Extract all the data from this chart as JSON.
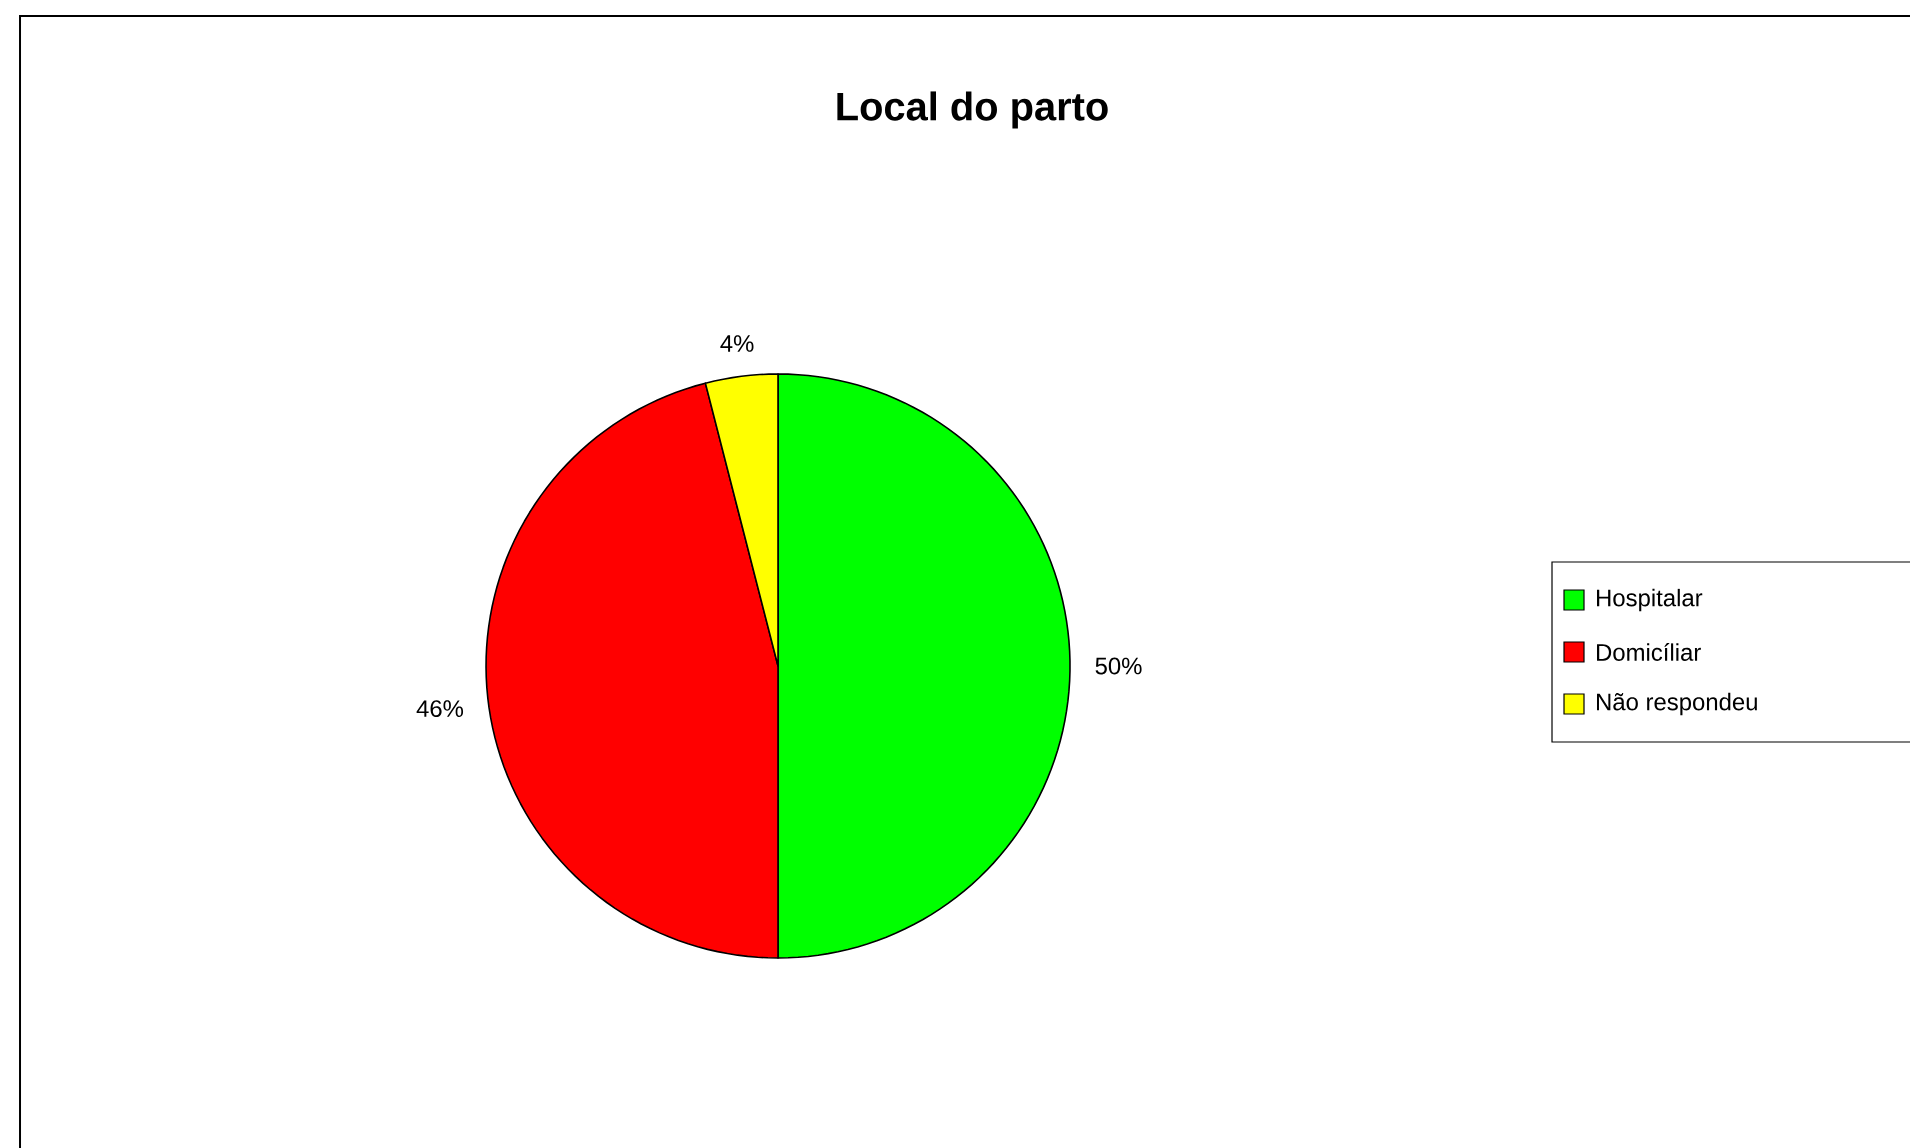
{
  "chart_data": {
    "type": "pie",
    "title": "Local do parto",
    "categories": [
      "Hospitalar",
      "Domicíliar",
      "Não respondeu"
    ],
    "values": [
      50,
      46,
      4
    ],
    "value_labels": [
      "50%",
      "46%",
      "4%"
    ],
    "colors": [
      "#00ff00",
      "#ff0000",
      "#ffff00"
    ],
    "legend": "right"
  }
}
